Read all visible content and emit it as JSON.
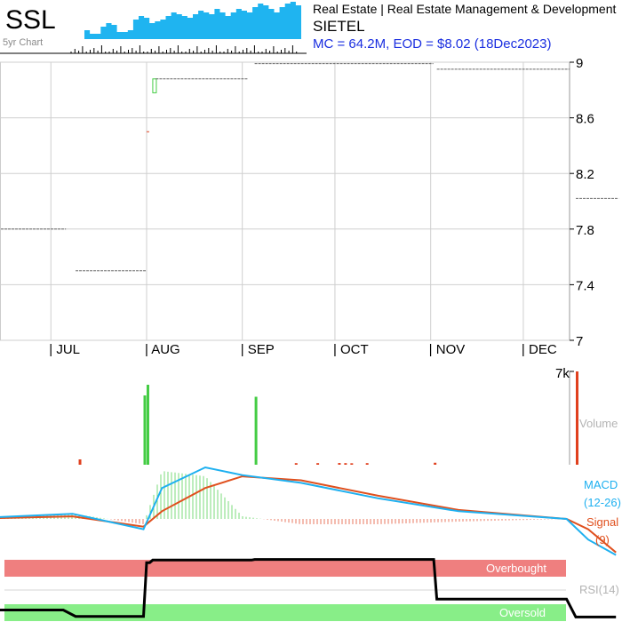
{
  "header": {
    "ticker": "SSL",
    "spark_caption": "5yr Chart",
    "sector_line": "Real Estate | Real Estate Management & Development",
    "company": "SIETEL",
    "stats_line": "MC = 64.2M, EOD = $8.02 (18Dec2023)"
  },
  "colors": {
    "accent": "#1fb4f0",
    "up": "#44cc44",
    "down": "#e0401e",
    "macd": "#1eb0f0",
    "signal": "#e0501e",
    "overbought_band": "#ef7f7f",
    "oversold_band": "#88ee88",
    "stats_text": "#1a2ee0"
  },
  "chart_data": [
    {
      "type": "line",
      "name": "price",
      "months": [
        "| JUL",
        "| AUG",
        "| SEP",
        "| OCT",
        "| NOV",
        "| DEC"
      ],
      "y_ticks": [
        "9",
        "8.6",
        "8.2",
        "7.8",
        "7.4",
        "7"
      ],
      "ylim": [
        7,
        9
      ],
      "segments": [
        {
          "from": "2023-06-01",
          "to": "2023-07-05",
          "value": 7.8
        },
        {
          "from": "2023-07-09",
          "to": "2023-07-31",
          "value": 7.5
        },
        {
          "from": "2023-08-01",
          "to": "2023-08-01",
          "value": 8.5
        },
        {
          "from": "2023-08-03",
          "to": "2023-08-03",
          "open": 8.78,
          "close": 8.88
        },
        {
          "from": "2023-08-04",
          "to": "2023-09-02",
          "value": 8.88
        },
        {
          "from": "2023-09-05",
          "to": "2023-11-01",
          "value": 8.99
        },
        {
          "from": "2023-11-03",
          "to": "2023-12-15",
          "value": 8.95
        },
        {
          "from": "2023-12-18",
          "to": "2023-12-31",
          "value": 8.02
        }
      ]
    },
    {
      "type": "bar",
      "name": "volume",
      "label": "Volume",
      "tick": "7k",
      "ylim": [
        0,
        7000
      ],
      "bars": [
        {
          "date": "2023-07-10",
          "value": 400,
          "dir": "down"
        },
        {
          "date": "2023-07-31",
          "value": 5200,
          "dir": "up"
        },
        {
          "date": "2023-08-01",
          "value": 6000,
          "dir": "up"
        },
        {
          "date": "2023-09-05",
          "value": 5100,
          "dir": "up"
        },
        {
          "date": "2023-09-18",
          "value": 120,
          "dir": "down"
        },
        {
          "date": "2023-09-25",
          "value": 120,
          "dir": "down"
        },
        {
          "date": "2023-10-02",
          "value": 130,
          "dir": "down"
        },
        {
          "date": "2023-10-04",
          "value": 120,
          "dir": "down"
        },
        {
          "date": "2023-10-06",
          "value": 110,
          "dir": "down"
        },
        {
          "date": "2023-10-11",
          "value": 120,
          "dir": "down"
        },
        {
          "date": "2023-11-02",
          "value": 150,
          "dir": "down"
        },
        {
          "date": "2023-12-18",
          "value": 7000,
          "dir": "down"
        }
      ]
    },
    {
      "type": "line",
      "name": "macd",
      "labels": [
        "MACD",
        "(12-26)",
        "Signal",
        "(9)"
      ],
      "macd_points": [
        [
          "2023-06-01",
          0
        ],
        [
          "2023-07-08",
          0.02
        ],
        [
          "2023-07-31",
          -0.04
        ],
        [
          "2023-08-06",
          0.12
        ],
        [
          "2023-08-20",
          0.2
        ],
        [
          "2023-09-01",
          0.17
        ],
        [
          "2023-09-20",
          0.14
        ],
        [
          "2023-10-15",
          0.08
        ],
        [
          "2023-11-10",
          0.03
        ],
        [
          "2023-12-15",
          0.0
        ],
        [
          "2023-12-22",
          -0.08
        ],
        [
          "2023-12-31",
          -0.14
        ]
      ],
      "signal_points": [
        [
          "2023-06-01",
          0
        ],
        [
          "2023-07-08",
          0.01
        ],
        [
          "2023-07-31",
          -0.03
        ],
        [
          "2023-08-06",
          0.03
        ],
        [
          "2023-08-20",
          0.12
        ],
        [
          "2023-09-01",
          0.165
        ],
        [
          "2023-09-20",
          0.15
        ],
        [
          "2023-10-15",
          0.09
        ],
        [
          "2023-11-10",
          0.035
        ],
        [
          "2023-12-15",
          0.0
        ],
        [
          "2023-12-22",
          -0.04
        ],
        [
          "2023-12-31",
          -0.13
        ]
      ],
      "ylim": [
        -0.15,
        0.2
      ]
    },
    {
      "type": "line",
      "name": "rsi",
      "label": "RSI(14)",
      "overbought": "Overbought",
      "oversold": "Oversold",
      "ylim": [
        0,
        100
      ],
      "points": [
        [
          "2023-06-01",
          16
        ],
        [
          "2023-07-05",
          16
        ],
        [
          "2023-07-09",
          6
        ],
        [
          "2023-07-31",
          6
        ],
        [
          "2023-08-01",
          90
        ],
        [
          "2023-08-02",
          90
        ],
        [
          "2023-08-03",
          94
        ],
        [
          "2023-09-04",
          94
        ],
        [
          "2023-09-05",
          95
        ],
        [
          "2023-11-02",
          95
        ],
        [
          "2023-11-03",
          33
        ],
        [
          "2023-12-15",
          33
        ],
        [
          "2023-12-18",
          5
        ],
        [
          "2023-12-31",
          5
        ]
      ]
    }
  ]
}
